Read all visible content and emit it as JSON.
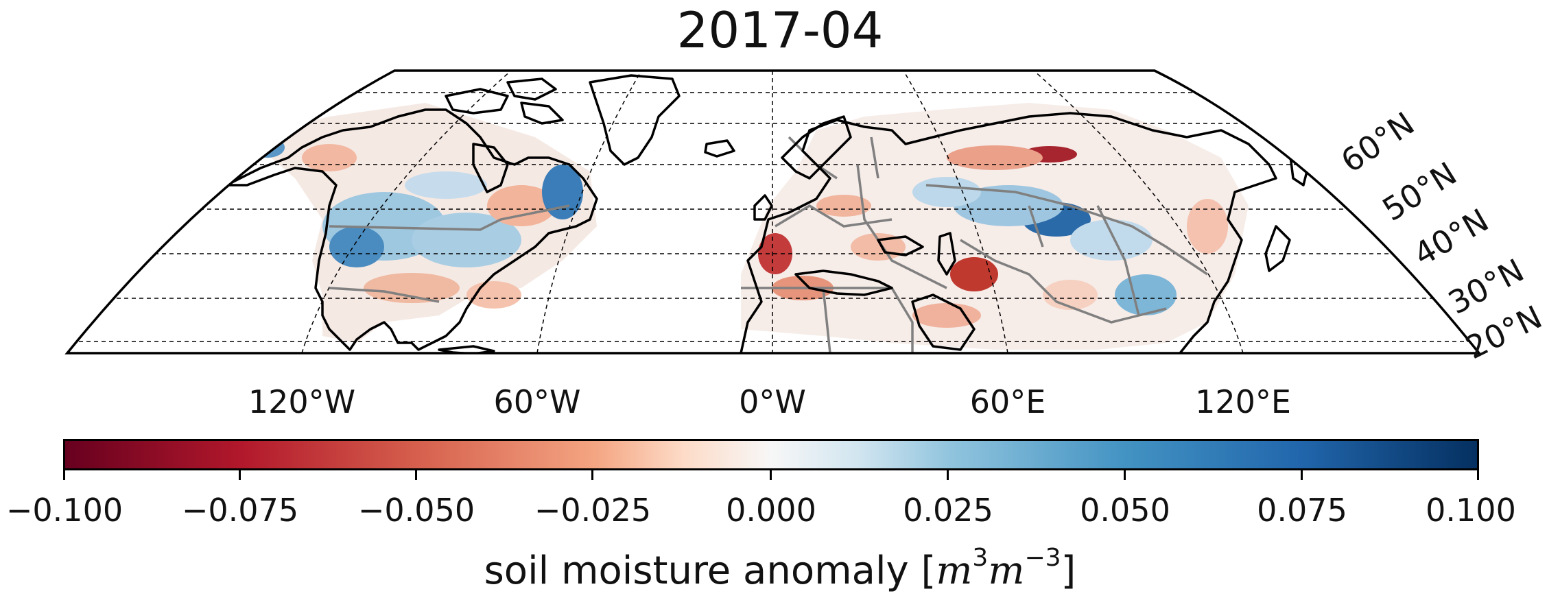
{
  "title": "2017-04",
  "lon_ticks": [
    "120°W",
    "60°W",
    "0°W",
    "60°E",
    "120°E"
  ],
  "lat_ticks": [
    "60°N",
    "50°N",
    "40°N",
    "30°N",
    "20°N"
  ],
  "colorbar": {
    "ticks": [
      "−0.100",
      "−0.075",
      "−0.050",
      "−0.025",
      "0.000",
      "0.025",
      "0.050",
      "0.075",
      "0.100"
    ],
    "label_prefix": "soil moisture anomaly [",
    "label_m1": "m",
    "label_e1": "3",
    "label_m2": "m",
    "label_e2": "−3",
    "label_suffix": "]",
    "colormap": "RdBu",
    "range": [
      -0.1,
      0.1
    ]
  },
  "colors": {
    "dry": "#b2182b",
    "wet": "#2166ac",
    "neutral": "#f7f7f7",
    "coast": "#000000",
    "borders": "#808080",
    "grid": "#000000"
  }
}
